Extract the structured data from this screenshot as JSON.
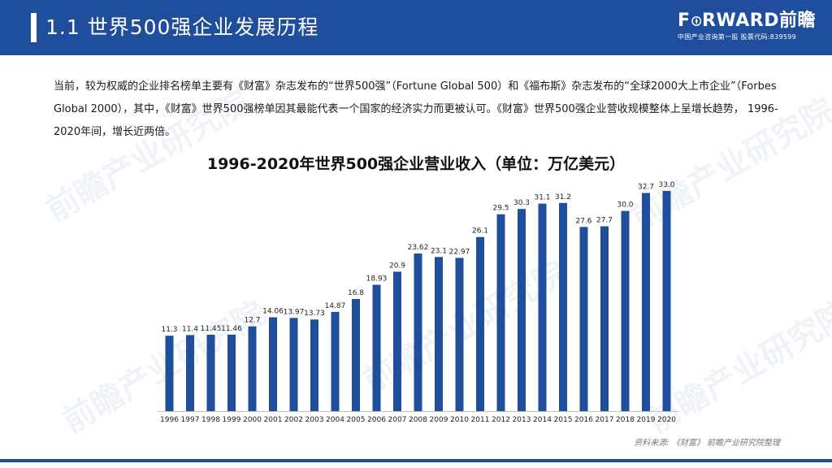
{
  "header": {
    "title": "1.1 世界500强企业发展历程",
    "logo_main_pre": "F",
    "logo_main_post": "RWARD前瞻",
    "logo_sub": "中国产业咨询第一股 股票代码:839599"
  },
  "intro_text": "当前，较为权威的企业排名榜单主要有《财富》杂志发布的“世界500强”（Fortune Global 500）和《福布斯》杂志发布的“全球2000大上市企业”（Forbes Global 2000），其中，《财富》世界500强榜单因其最能代表一个国家的经济实力而更被认可。《财富》世界500强企业营收规模整体上呈增长趋势， 1996-2020年间，增长近两倍。",
  "watermark_text": "前瞻产业研究院",
  "source": "资料来源: 《财富》 前瞻产业研究院整理",
  "colors": {
    "brand": "#1f4e9c",
    "bar": "#1f4e9c"
  },
  "chart_data": {
    "type": "bar",
    "title": "1996-2020年世界500强企业营业收入（单位：万亿美元）",
    "xlabel": "",
    "ylabel": "",
    "categories": [
      "1996",
      "1997",
      "1998",
      "1999",
      "2000",
      "2001",
      "2002",
      "2003",
      "2004",
      "2005",
      "2006",
      "2007",
      "2008",
      "2009",
      "2010",
      "2011",
      "2012",
      "2013",
      "2014",
      "2015",
      "2016",
      "2017",
      "2018",
      "2019",
      "2020"
    ],
    "values": [
      11.3,
      11.4,
      11.45,
      11.46,
      12.7,
      14.06,
      13.97,
      13.73,
      14.87,
      16.8,
      18.93,
      20.9,
      23.62,
      23.1,
      22.97,
      26.1,
      29.5,
      30.3,
      31.1,
      31.2,
      27.6,
      27.7,
      30.0,
      32.7,
      33.0
    ],
    "labels": [
      "11.3",
      "11.4",
      "11.45",
      "11.46",
      "12.7",
      "14.06",
      "13.97",
      "13.73",
      "14.87",
      "16.8",
      "18.93",
      "20.9",
      "23.62",
      "23.1",
      "22.97",
      "26.1",
      "29.5",
      "30.3",
      "31.1",
      "31.2",
      "27.6",
      "27.7",
      "30.0",
      "32.7",
      "33.0"
    ],
    "ylim": [
      0,
      33
    ],
    "grid": false,
    "legend": "none"
  }
}
